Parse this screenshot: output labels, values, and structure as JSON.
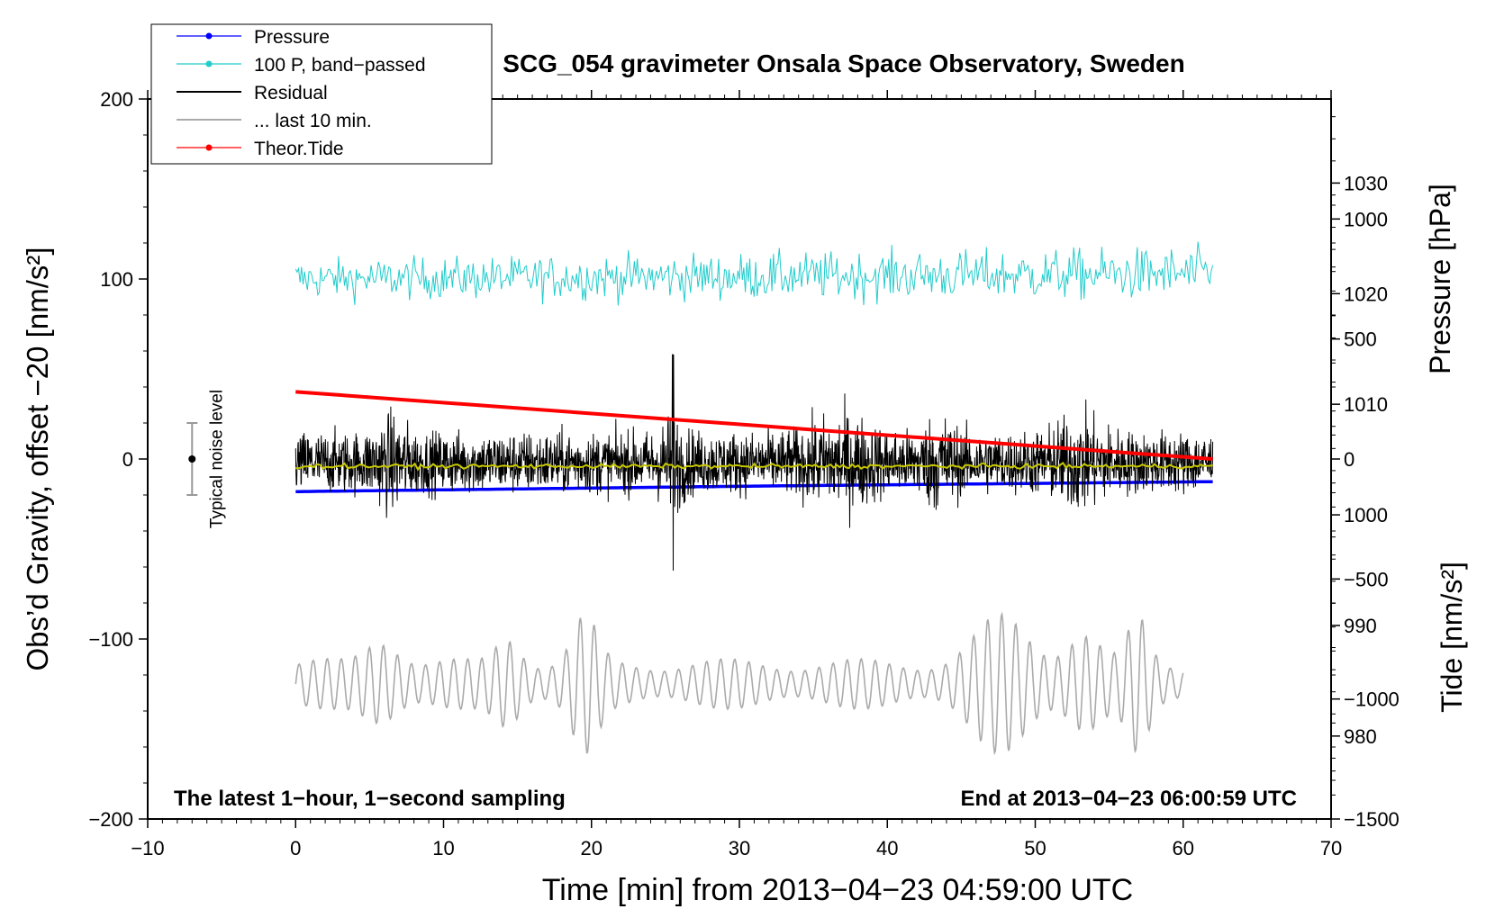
{
  "chart_data": {
    "type": "line",
    "title": "SCG_054 gravimeter Onsala Space Observatory, Sweden",
    "xlabel": "Time [min] from 2013−04−23 04:59:00 UTC",
    "ylabel_main": "Obs’d Gravity, offset −20 [nm/s²]",
    "ylabel_pressure": "Pressure [hPa]",
    "ylabel_tide": "Tide [nm/s²]",
    "xlim": [
      -10,
      70
    ],
    "ylim": [
      -200,
      200
    ],
    "pressure_range": [
      972.5,
      1037.6
    ],
    "tide_range": [
      -1500,
      1500
    ],
    "x_ticks": [
      "−10",
      "0",
      "10",
      "20",
      "30",
      "40",
      "50",
      "60",
      "70"
    ],
    "x_tick_values": [
      -10,
      0,
      10,
      20,
      30,
      40,
      50,
      60,
      70
    ],
    "y_ticks": [
      "−200",
      "−100",
      "0",
      "100",
      "200"
    ],
    "y_tick_values": [
      -200,
      -100,
      0,
      100,
      200
    ],
    "pressure_ticks": [
      "980",
      "990",
      "1000",
      "1010",
      "1020",
      "1030"
    ],
    "pressure_tick_values": [
      980,
      990,
      1000,
      1010,
      1020,
      1030
    ],
    "tide_ticks": [
      "−1500",
      "−1000",
      "−500",
      "0",
      "500",
      "1000"
    ],
    "tide_tick_values": [
      -1500,
      -1000,
      -500,
      0,
      500,
      1000
    ],
    "legend": {
      "position": "top-left",
      "entries": [
        {
          "label": "Pressure",
          "color": "#0000ff",
          "marker": "dot"
        },
        {
          "label": "100 P, band−passed",
          "color": "#22cccc",
          "marker": "dot"
        },
        {
          "label": "Residual",
          "color": "#000000",
          "marker": "none"
        },
        {
          "label": "... last 10 min.",
          "color": "#aaaaaa",
          "marker": "none"
        },
        {
          "label": "Theor.Tide",
          "color": "#ff0000",
          "marker": "dot"
        }
      ]
    },
    "annotations": {
      "noise": "Typical noise level",
      "noise_range": [
        -20,
        20
      ],
      "noise_x": -7,
      "bottom_left": "The latest 1−hour, 1−second sampling",
      "bottom_right": "End at 2013−04−23 06:00:59 UTC"
    },
    "series": [
      {
        "name": "Pressure",
        "color": "#0000ff",
        "x_range": [
          0,
          62
        ],
        "pressure_values": [
          1002.1,
          1002.6,
          1003.0
        ]
      },
      {
        "name": "100 P, band-passed",
        "color": "#22cccc",
        "x_range": [
          0,
          62
        ],
        "center": 100,
        "amplitude": [
          12,
          16
        ]
      },
      {
        "name": "Residual",
        "color": "#000000",
        "x_range": [
          0,
          62
        ],
        "center": -2,
        "amplitude_typical": 25,
        "amplitude_max": 60
      },
      {
        "name": "Residual smoothed",
        "color": "#c8c800",
        "x_range": [
          0,
          62
        ],
        "value": -4
      },
      {
        "name": "Theor.Tide",
        "color": "#ff0000",
        "x_range": [
          0,
          62
        ],
        "tide_values": [
          280,
          0
        ]
      },
      {
        "name": "... last 10 min.",
        "color": "#aaaaaa",
        "x_range": [
          0,
          60
        ],
        "center": -125,
        "amplitude_max": 45
      }
    ]
  },
  "colors": {
    "pressure": "#0000ff",
    "bandpassed": "#22cccc",
    "residual": "#000000",
    "smoothed": "#c8c800",
    "last10": "#aaaaaa",
    "tide": "#ff0000"
  }
}
